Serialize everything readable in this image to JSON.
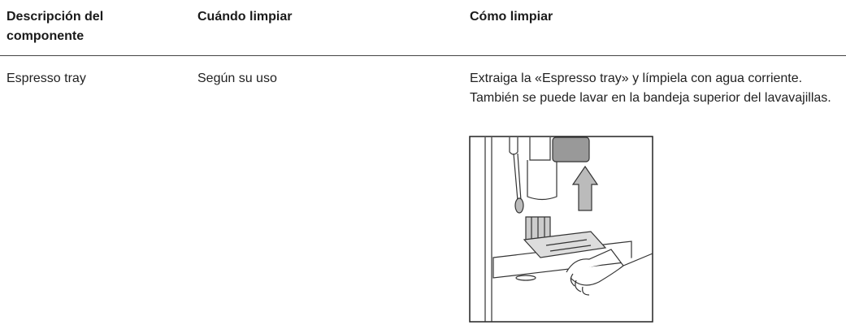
{
  "table": {
    "headers": [
      "Descripción del componente",
      "Cuándo limpiar",
      "Cómo limpiar"
    ],
    "rows": [
      [
        "Espresso tray",
        "Según su uso",
        "Extraiga la «Espresso tray» y límpiela con agua corriente. También se puede lavar en la bandeja superior del lavavajillas."
      ]
    ]
  }
}
